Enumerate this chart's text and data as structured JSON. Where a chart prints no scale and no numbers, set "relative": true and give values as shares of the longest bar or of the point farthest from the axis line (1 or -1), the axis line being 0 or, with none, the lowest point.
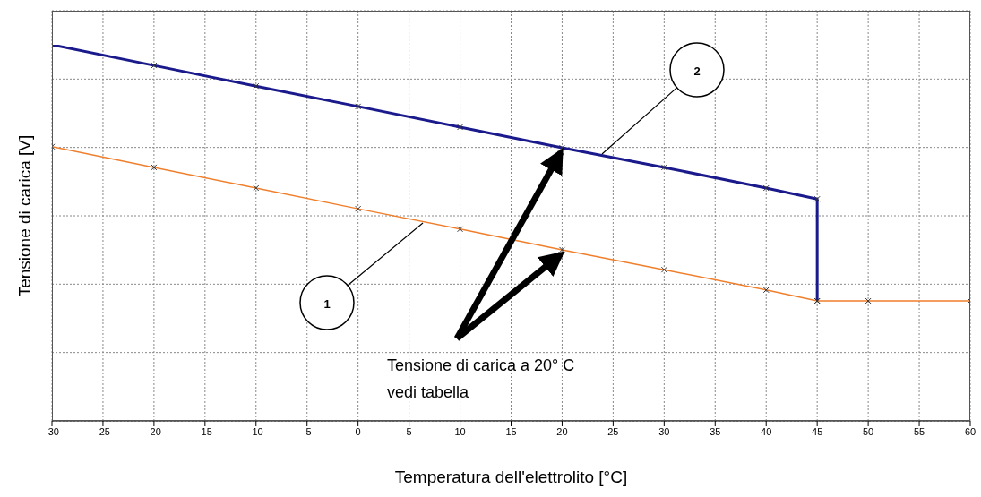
{
  "chart_data": {
    "type": "line",
    "relative": true,
    "xlabel": "Temperatura dell'elettrolito [°C]",
    "ylabel": "Tensione di carica [V]",
    "xlim": [
      -30,
      60
    ],
    "xticks": [
      -30,
      -25,
      -20,
      -15,
      -10,
      -5,
      0,
      5,
      10,
      15,
      20,
      25,
      30,
      35,
      40,
      45,
      50,
      55,
      60
    ],
    "grid": true,
    "marker": "cross",
    "line_style": "solid",
    "series": [
      {
        "color": "#1a1a8c",
        "x": [
          -30,
          -20,
          -10,
          0,
          10,
          20,
          30,
          40,
          45,
          45
        ],
        "values": [
          1,
          0.945,
          0.89,
          0.836,
          0.781,
          0.726,
          0.674,
          0.619,
          0.59,
          0.319
        ]
      },
      {
        "color": "#f07f2c",
        "x": [
          -30,
          -20,
          -10,
          0,
          10,
          20,
          30,
          40,
          45,
          50,
          60
        ],
        "values": [
          0.729,
          0.674,
          0.619,
          0.564,
          0.51,
          0.455,
          0.402,
          0.348,
          0.319,
          0.319,
          0.319
        ]
      }
    ],
    "annotations": [
      "1",
      "2",
      "Tensione di carica a 20° C\nvedi tabella"
    ]
  }
}
